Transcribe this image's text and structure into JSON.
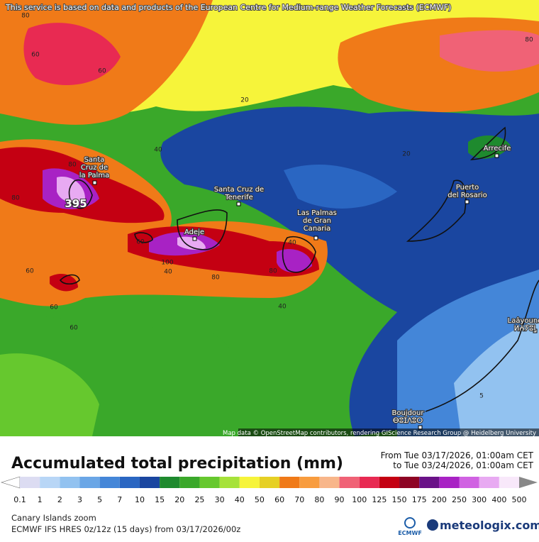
{
  "header": {
    "notice": "This service is based on data and products of the European Centre for Medium-range Weather Forecasts (ECMWF)"
  },
  "map": {
    "places": [
      "Santa\nCruz de\nla Palma",
      "Santa Cruz de\nTenerife",
      "Adeje",
      "Las Palmas\nde Gran\nCanaria",
      "Puerto\ndel Rosario",
      "Arrecife",
      "Laâyoune\nⵍⵄⵢⵓⵏ",
      "Boujdour\nⴱⵓⵊⴷⵓⵔ"
    ],
    "max_label": 395,
    "contour_labels": [
      80,
      60,
      60,
      80,
      20,
      40,
      80,
      80,
      60,
      60,
      40,
      100,
      80,
      80,
      40,
      40,
      60,
      20,
      5,
      60
    ],
    "attribution": "Map data © OpenStreetMap contributors, rendering GIScience Research Group @ Heidelberg University"
  },
  "title": "Accumulated total precipitation (mm)",
  "period": {
    "from": "From Tue 03/17/2026, 01:00am CET",
    "to": "to Tue 03/24/2026, 01:00am CET"
  },
  "legend": {
    "values": [
      0.1,
      1,
      2,
      3,
      5,
      7,
      10,
      15,
      20,
      25,
      30,
      40,
      50,
      60,
      70,
      80,
      90,
      100,
      125,
      150,
      175,
      200,
      250,
      300,
      400,
      500
    ],
    "colors": [
      "#ffffff",
      "#dcdcf2",
      "#b8d6f6",
      "#92c2f0",
      "#6aa6e6",
      "#4486d8",
      "#2a66c2",
      "#1a46a0",
      "#1e8a2e",
      "#3aa82a",
      "#66c82e",
      "#a6e23a",
      "#f6f43a",
      "#e6d024",
      "#f07a18",
      "#f89c3e",
      "#f8b68a",
      "#f06276",
      "#e82a52",
      "#c40012",
      "#8e0424",
      "#6a1288",
      "#a822c4",
      "#d062e2",
      "#e8aaf2",
      "#f8e8fa",
      "#c8c8c8",
      "#888888"
    ]
  },
  "footer": {
    "region": "Canary Islands zoom",
    "model": "ECMWF IFS HRES 0z/12z (15 days) from 03/17/2026/00z",
    "logo": "ECMWF",
    "site": "meteologix.com"
  }
}
